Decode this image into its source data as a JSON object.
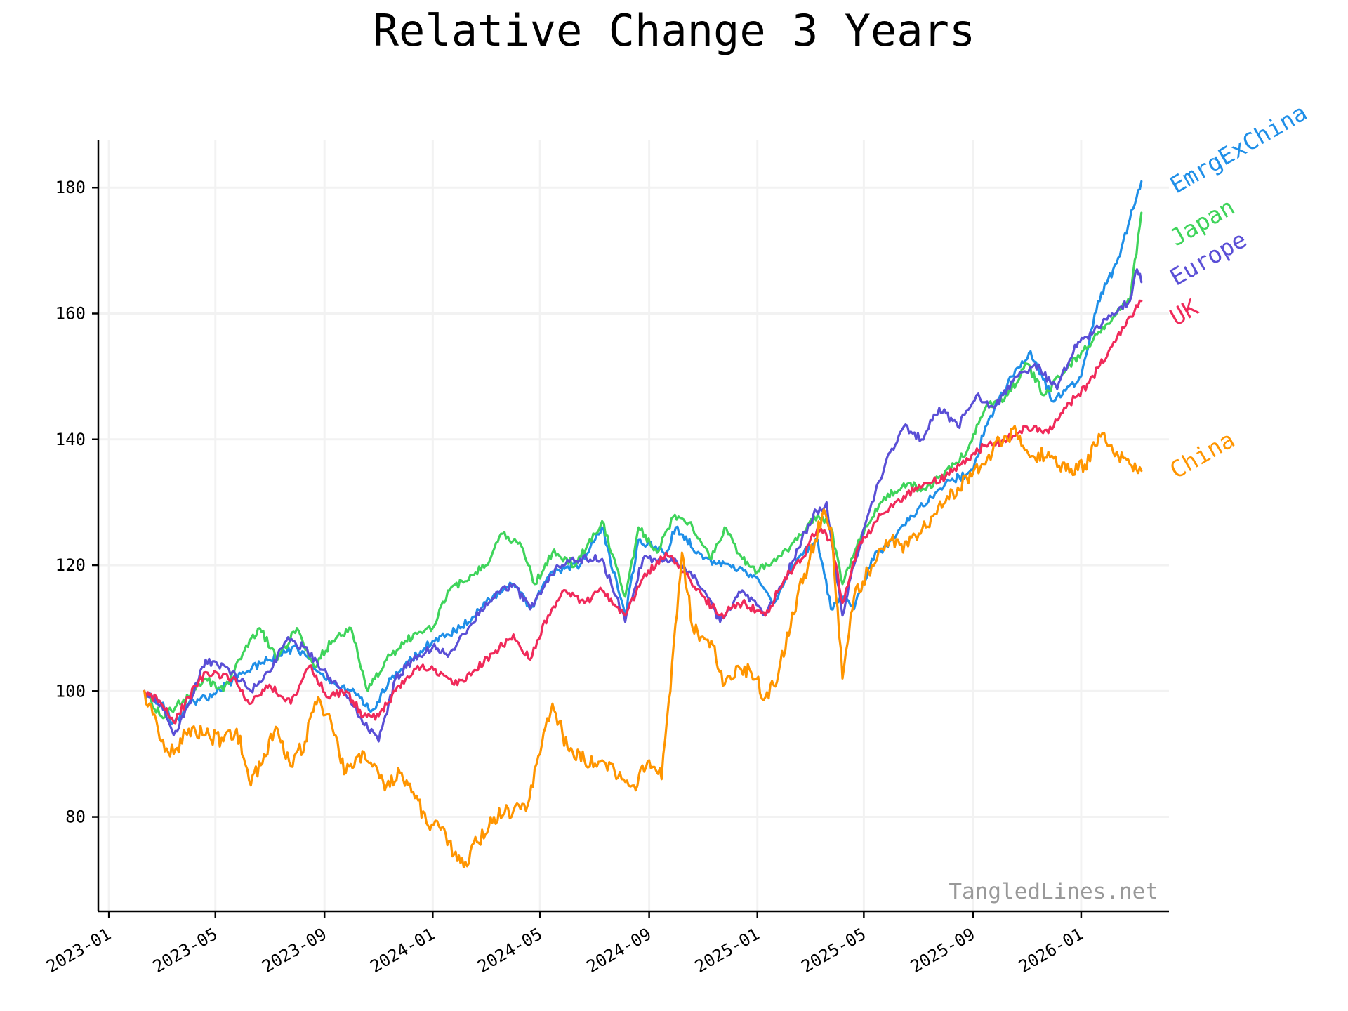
{
  "chart_data": {
    "type": "line",
    "title": "Relative Change 3 Years",
    "xlabel": "",
    "ylabel": "",
    "x_range": [
      "2022-12-20",
      "2026-04-10"
    ],
    "ylim": [
      65,
      187.5
    ],
    "grid": true,
    "x_ticks": [
      "2023-01",
      "2023-05",
      "2023-09",
      "2024-01",
      "2024-05",
      "2024-09",
      "2025-01",
      "2025-05",
      "2025-09",
      "2026-01"
    ],
    "y_ticks": [
      80,
      100,
      120,
      140,
      160,
      180
    ],
    "watermark": "TangledLines.net",
    "series": [
      {
        "name": "EmrgExChina",
        "color": "#1f8fe8",
        "points": [
          [
            "2023-02-10",
            100
          ],
          [
            "2023-03-01",
            98
          ],
          [
            "2023-03-15",
            95
          ],
          [
            "2023-04-01",
            98
          ],
          [
            "2023-05-01",
            99.5
          ],
          [
            "2023-06-01",
            103
          ],
          [
            "2023-07-01",
            105
          ],
          [
            "2023-08-01",
            107
          ],
          [
            "2023-09-01",
            102
          ],
          [
            "2023-10-01",
            100
          ],
          [
            "2023-10-25",
            97
          ],
          [
            "2023-11-15",
            102
          ],
          [
            "2024-01-01",
            108
          ],
          [
            "2024-02-01",
            110
          ],
          [
            "2024-03-01",
            114
          ],
          [
            "2024-04-01",
            117
          ],
          [
            "2024-04-20",
            113
          ],
          [
            "2024-05-15",
            119
          ],
          [
            "2024-06-15",
            120
          ],
          [
            "2024-07-10",
            126
          ],
          [
            "2024-08-05",
            112
          ],
          [
            "2024-08-20",
            124
          ],
          [
            "2024-09-20",
            122
          ],
          [
            "2024-10-01",
            126
          ],
          [
            "2024-11-01",
            121
          ],
          [
            "2024-12-01",
            120
          ],
          [
            "2025-01-01",
            118
          ],
          [
            "2025-01-20",
            114
          ],
          [
            "2025-02-15",
            121
          ],
          [
            "2025-03-10",
            124
          ],
          [
            "2025-03-25",
            113
          ],
          [
            "2025-04-08",
            115
          ],
          [
            "2025-04-20",
            113
          ],
          [
            "2025-05-10",
            121
          ],
          [
            "2025-06-01",
            124
          ],
          [
            "2025-07-01",
            129
          ],
          [
            "2025-08-01",
            133
          ],
          [
            "2025-09-01",
            135
          ],
          [
            "2025-09-15",
            142
          ],
          [
            "2025-10-15",
            150
          ],
          [
            "2025-11-05",
            154
          ],
          [
            "2025-12-01",
            146
          ],
          [
            "2026-01-01",
            150
          ],
          [
            "2026-01-20",
            162
          ],
          [
            "2026-02-10",
            168
          ],
          [
            "2026-02-25",
            175
          ],
          [
            "2026-03-10",
            181
          ]
        ]
      },
      {
        "name": "Japan",
        "color": "#3fd45b",
        "points": [
          [
            "2023-02-10",
            100
          ],
          [
            "2023-03-01",
            96
          ],
          [
            "2023-04-01",
            99
          ],
          [
            "2023-04-20",
            102
          ],
          [
            "2023-05-10",
            100
          ],
          [
            "2023-06-01",
            106
          ],
          [
            "2023-06-20",
            110
          ],
          [
            "2023-07-10",
            105
          ],
          [
            "2023-08-01",
            110
          ],
          [
            "2023-08-20",
            104
          ],
          [
            "2023-09-10",
            108
          ],
          [
            "2023-10-01",
            110
          ],
          [
            "2023-10-20",
            100
          ],
          [
            "2023-11-10",
            105
          ],
          [
            "2023-12-01",
            108
          ],
          [
            "2024-01-01",
            110
          ],
          [
            "2024-01-20",
            116
          ],
          [
            "2024-03-01",
            120
          ],
          [
            "2024-03-20",
            125
          ],
          [
            "2024-04-10",
            123
          ],
          [
            "2024-04-25",
            117
          ],
          [
            "2024-05-15",
            122
          ],
          [
            "2024-06-10",
            120
          ],
          [
            "2024-07-10",
            127
          ],
          [
            "2024-08-05",
            115
          ],
          [
            "2024-08-20",
            126
          ],
          [
            "2024-09-10",
            122
          ],
          [
            "2024-09-30",
            128
          ],
          [
            "2024-10-20",
            126
          ],
          [
            "2024-11-10",
            121
          ],
          [
            "2024-11-25",
            126
          ],
          [
            "2024-12-15",
            121
          ],
          [
            "2025-01-01",
            119
          ],
          [
            "2025-01-20",
            121
          ],
          [
            "2025-02-15",
            124
          ],
          [
            "2025-03-10",
            128
          ],
          [
            "2025-03-25",
            126
          ],
          [
            "2025-04-07",
            117
          ],
          [
            "2025-04-25",
            124
          ],
          [
            "2025-05-20",
            130
          ],
          [
            "2025-06-15",
            133
          ],
          [
            "2025-07-10",
            132
          ],
          [
            "2025-08-01",
            135
          ],
          [
            "2025-08-25",
            138
          ],
          [
            "2025-09-15",
            145
          ],
          [
            "2025-10-10",
            147
          ],
          [
            "2025-11-01",
            152
          ],
          [
            "2025-11-20",
            147
          ],
          [
            "2025-12-15",
            151
          ],
          [
            "2026-01-15",
            156
          ],
          [
            "2026-02-10",
            160
          ],
          [
            "2026-02-25",
            162
          ],
          [
            "2026-03-10",
            176
          ]
        ]
      },
      {
        "name": "Europe",
        "color": "#5a4fd6",
        "points": [
          [
            "2023-02-10",
            100
          ],
          [
            "2023-03-01",
            98
          ],
          [
            "2023-03-15",
            93
          ],
          [
            "2023-04-01",
            98
          ],
          [
            "2023-04-20",
            105
          ],
          [
            "2023-05-20",
            103
          ],
          [
            "2023-06-10",
            100
          ],
          [
            "2023-07-01",
            103
          ],
          [
            "2023-07-20",
            108
          ],
          [
            "2023-08-10",
            107
          ],
          [
            "2023-08-25",
            104
          ],
          [
            "2023-09-15",
            101
          ],
          [
            "2023-10-01",
            98
          ],
          [
            "2023-10-20",
            94
          ],
          [
            "2023-11-01",
            92
          ],
          [
            "2023-11-20",
            102
          ],
          [
            "2023-12-10",
            105
          ],
          [
            "2024-01-01",
            107
          ],
          [
            "2024-01-20",
            106
          ],
          [
            "2024-02-10",
            110
          ],
          [
            "2024-03-01",
            114
          ],
          [
            "2024-04-01",
            117
          ],
          [
            "2024-04-20",
            113
          ],
          [
            "2024-05-20",
            120
          ],
          [
            "2024-06-15",
            121
          ],
          [
            "2024-07-10",
            121
          ],
          [
            "2024-08-05",
            111
          ],
          [
            "2024-08-25",
            121
          ],
          [
            "2024-09-20",
            121
          ],
          [
            "2024-10-10",
            120
          ],
          [
            "2024-11-01",
            116
          ],
          [
            "2024-11-20",
            111
          ],
          [
            "2024-12-15",
            116
          ],
          [
            "2025-01-10",
            112
          ],
          [
            "2025-02-01",
            118
          ],
          [
            "2025-02-20",
            124
          ],
          [
            "2025-03-05",
            128
          ],
          [
            "2025-03-20",
            130
          ],
          [
            "2025-04-07",
            112
          ],
          [
            "2025-04-20",
            120
          ],
          [
            "2025-05-10",
            130
          ],
          [
            "2025-05-25",
            136
          ],
          [
            "2025-06-15",
            142
          ],
          [
            "2025-07-05",
            140
          ],
          [
            "2025-07-25",
            145
          ],
          [
            "2025-08-15",
            142
          ],
          [
            "2025-09-05",
            147
          ],
          [
            "2025-09-25",
            145
          ],
          [
            "2025-10-20",
            150
          ],
          [
            "2025-11-10",
            152
          ],
          [
            "2025-12-05",
            148
          ],
          [
            "2025-12-25",
            155
          ],
          [
            "2026-01-15",
            157
          ],
          [
            "2026-02-05",
            160
          ],
          [
            "2026-02-25",
            162
          ],
          [
            "2026-03-05",
            167
          ],
          [
            "2026-03-10",
            165
          ]
        ]
      },
      {
        "name": "UK",
        "color": "#f02a5a",
        "points": [
          [
            "2023-02-10",
            100
          ],
          [
            "2023-03-01",
            98
          ],
          [
            "2023-03-15",
            95
          ],
          [
            "2023-04-01",
            99
          ],
          [
            "2023-04-20",
            103
          ],
          [
            "2023-05-20",
            102
          ],
          [
            "2023-06-10",
            98
          ],
          [
            "2023-07-01",
            101
          ],
          [
            "2023-07-25",
            98
          ],
          [
            "2023-08-15",
            104
          ],
          [
            "2023-09-05",
            99
          ],
          [
            "2023-09-25",
            100
          ],
          [
            "2023-10-15",
            96
          ],
          [
            "2023-11-01",
            96
          ],
          [
            "2023-11-20",
            100
          ],
          [
            "2023-12-15",
            104
          ],
          [
            "2024-01-10",
            103
          ],
          [
            "2024-01-25",
            101
          ],
          [
            "2024-02-15",
            103
          ],
          [
            "2024-03-10",
            106
          ],
          [
            "2024-04-01",
            109
          ],
          [
            "2024-04-20",
            105
          ],
          [
            "2024-05-10",
            112
          ],
          [
            "2024-05-30",
            116
          ],
          [
            "2024-06-20",
            114
          ],
          [
            "2024-07-10",
            116
          ],
          [
            "2024-08-05",
            112
          ],
          [
            "2024-08-25",
            118
          ],
          [
            "2024-09-20",
            122
          ],
          [
            "2024-10-10",
            119
          ],
          [
            "2024-11-01",
            115
          ],
          [
            "2024-11-20",
            112
          ],
          [
            "2024-12-15",
            114
          ],
          [
            "2025-01-10",
            112
          ],
          [
            "2025-02-01",
            118
          ],
          [
            "2025-02-20",
            121
          ],
          [
            "2025-03-10",
            126
          ],
          [
            "2025-03-25",
            124
          ],
          [
            "2025-04-07",
            114
          ],
          [
            "2025-04-25",
            123
          ],
          [
            "2025-05-20",
            128
          ],
          [
            "2025-06-15",
            131
          ],
          [
            "2025-07-10",
            133
          ],
          [
            "2025-08-01",
            134
          ],
          [
            "2025-08-25",
            137
          ],
          [
            "2025-09-15",
            139
          ],
          [
            "2025-10-10",
            140
          ],
          [
            "2025-11-01",
            142
          ],
          [
            "2025-11-25",
            141
          ],
          [
            "2025-12-15",
            145
          ],
          [
            "2026-01-10",
            149
          ],
          [
            "2026-02-01",
            154
          ],
          [
            "2026-02-20",
            158
          ],
          [
            "2026-03-10",
            162
          ]
        ]
      },
      {
        "name": "China",
        "color": "#ff9500",
        "points": [
          [
            "2023-02-10",
            100
          ],
          [
            "2023-03-01",
            92
          ],
          [
            "2023-03-15",
            90
          ],
          [
            "2023-04-01",
            94
          ],
          [
            "2023-04-20",
            93
          ],
          [
            "2023-05-10",
            92
          ],
          [
            "2023-05-25",
            94
          ],
          [
            "2023-06-10",
            85
          ],
          [
            "2023-06-25",
            90
          ],
          [
            "2023-07-10",
            94
          ],
          [
            "2023-07-25",
            88
          ],
          [
            "2023-08-10",
            92
          ],
          [
            "2023-08-25",
            99
          ],
          [
            "2023-09-10",
            94
          ],
          [
            "2023-09-25",
            87
          ],
          [
            "2023-10-10",
            90
          ],
          [
            "2023-10-25",
            88
          ],
          [
            "2023-11-10",
            85
          ],
          [
            "2023-11-25",
            87
          ],
          [
            "2023-12-10",
            84
          ],
          [
            "2023-12-25",
            79
          ],
          [
            "2024-01-10",
            78
          ],
          [
            "2024-01-25",
            74
          ],
          [
            "2024-02-05",
            72
          ],
          [
            "2024-02-20",
            76
          ],
          [
            "2024-03-10",
            80
          ],
          [
            "2024-04-01",
            81
          ],
          [
            "2024-04-15",
            81
          ],
          [
            "2024-05-01",
            90
          ],
          [
            "2024-05-15",
            98
          ],
          [
            "2024-06-01",
            91
          ],
          [
            "2024-06-20",
            89
          ],
          [
            "2024-07-10",
            89
          ],
          [
            "2024-08-01",
            86
          ],
          [
            "2024-08-15",
            85
          ],
          [
            "2024-09-01",
            89
          ],
          [
            "2024-09-15",
            86
          ],
          [
            "2024-09-25",
            100
          ],
          [
            "2024-10-08",
            122
          ],
          [
            "2024-10-20",
            110
          ],
          [
            "2024-11-10",
            108
          ],
          [
            "2024-11-25",
            101
          ],
          [
            "2024-12-10",
            104
          ],
          [
            "2024-12-25",
            103
          ],
          [
            "2025-01-10",
            99
          ],
          [
            "2025-01-25",
            103
          ],
          [
            "2025-02-15",
            115
          ],
          [
            "2025-03-01",
            121
          ],
          [
            "2025-03-15",
            128
          ],
          [
            "2025-03-25",
            126
          ],
          [
            "2025-04-07",
            102
          ],
          [
            "2025-04-20",
            115
          ],
          [
            "2025-05-10",
            120
          ],
          [
            "2025-06-01",
            124
          ],
          [
            "2025-06-20",
            123
          ],
          [
            "2025-07-10",
            126
          ],
          [
            "2025-08-01",
            130
          ],
          [
            "2025-08-25",
            134
          ],
          [
            "2025-09-15",
            136
          ],
          [
            "2025-10-01",
            140
          ],
          [
            "2025-10-20",
            141
          ],
          [
            "2025-11-10",
            137
          ],
          [
            "2025-11-25",
            138
          ],
          [
            "2025-12-15",
            135
          ],
          [
            "2026-01-05",
            136
          ],
          [
            "2026-01-25",
            141
          ],
          [
            "2026-02-10",
            138
          ],
          [
            "2026-02-25",
            136
          ],
          [
            "2026-03-10",
            135
          ]
        ]
      }
    ]
  }
}
